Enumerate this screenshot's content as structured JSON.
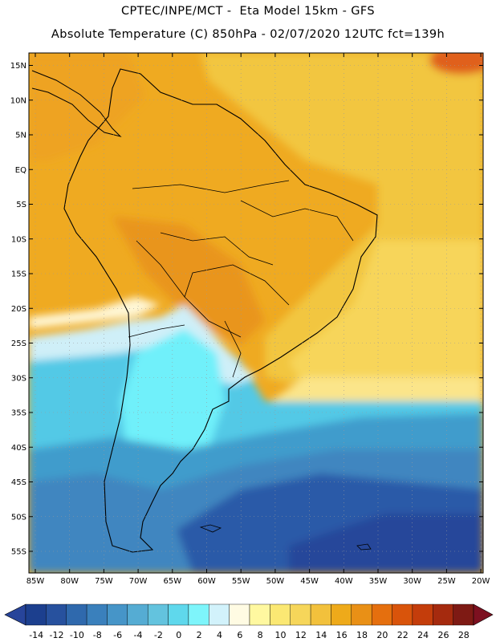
{
  "title_line1": "CPTEC/INPE/MCT -  Eta Model 15km - GFS",
  "title_line2": "Absolute Temperature (C) 850hPa - 02/07/2020 12UTC fct=139h",
  "lat_ticks": [
    "15N",
    "10N",
    "5N",
    "EQ",
    "5S",
    "10S",
    "15S",
    "20S",
    "25S",
    "30S",
    "35S",
    "40S",
    "45S",
    "50S",
    "55S"
  ],
  "lon_ticks": [
    "85W",
    "80W",
    "75W",
    "70W",
    "65W",
    "60W",
    "55W",
    "50W",
    "45W",
    "40W",
    "35W",
    "30W",
    "25W",
    "20W"
  ],
  "colorbar": {
    "labels": [
      "-14",
      "-12",
      "-10",
      "-8",
      "-6",
      "-4",
      "-2",
      "0",
      "2",
      "4",
      "6",
      "8",
      "10",
      "12",
      "14",
      "16",
      "18",
      "20",
      "22",
      "24",
      "26",
      "28"
    ],
    "colors": [
      "#1c3f8e",
      "#27519e",
      "#2f69ad",
      "#3a80bc",
      "#4695c8",
      "#55acd3",
      "#63c3de",
      "#5fd8ec",
      "#7ef5fb",
      "#d2f2fb",
      "#fffbe3",
      "#fff8a0",
      "#fbe873",
      "#f6d65a",
      "#f2c13c",
      "#eeaa1a",
      "#e99016",
      "#e56f0e",
      "#d9540b",
      "#c43d0b",
      "#a52a0e",
      "#7e1a14"
    ],
    "low_color": "#27449a",
    "high_color": "#7d1020"
  },
  "map_colors": {
    "ocean_deep_blue": "#2b5aa8",
    "ocean_blue": "#3f86c0",
    "cyan": "#52c9e6",
    "bright_cyan": "#6ff0fa",
    "pale_cyan": "#cfeff8",
    "cream": "#fff7d6",
    "yellow": "#f7d55a",
    "gold": "#f2c63f",
    "orange": "#efaa21",
    "dark_orange": "#e9951a",
    "red_orange": "#e0611c"
  }
}
